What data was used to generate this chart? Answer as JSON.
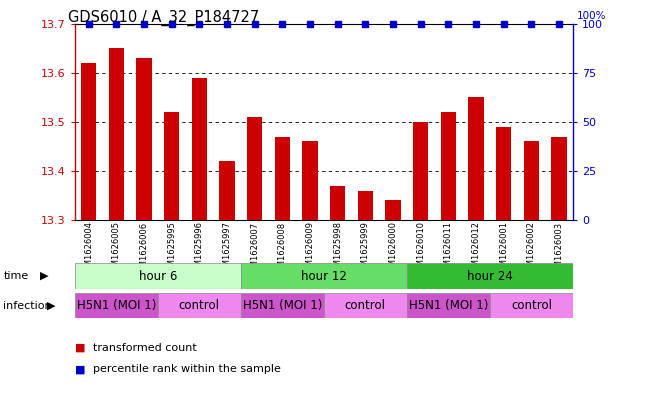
{
  "title": "GDS6010 / A_32_P184727",
  "samples": [
    "GSM1626004",
    "GSM1626005",
    "GSM1626006",
    "GSM1625995",
    "GSM1625996",
    "GSM1625997",
    "GSM1626007",
    "GSM1626008",
    "GSM1626009",
    "GSM1625998",
    "GSM1625999",
    "GSM1626000",
    "GSM1626010",
    "GSM1626011",
    "GSM1626012",
    "GSM1626001",
    "GSM1626002",
    "GSM1626003"
  ],
  "bar_values": [
    13.62,
    13.65,
    13.63,
    13.52,
    13.59,
    13.42,
    13.51,
    13.47,
    13.46,
    13.37,
    13.36,
    13.34,
    13.5,
    13.52,
    13.55,
    13.49,
    13.46,
    13.47
  ],
  "percentile_values": [
    100,
    100,
    100,
    100,
    100,
    100,
    100,
    100,
    100,
    100,
    100,
    100,
    100,
    100,
    100,
    100,
    100,
    100
  ],
  "ylim": [
    13.3,
    13.7
  ],
  "yticks": [
    13.3,
    13.4,
    13.5,
    13.6,
    13.7
  ],
  "right_yticks": [
    0,
    25,
    50,
    75,
    100
  ],
  "bar_color": "#cc0000",
  "dot_color": "#0000cc",
  "time_colors": [
    "#c8ffc8",
    "#66dd66",
    "#33bb33"
  ],
  "inf_colors": {
    "H5N1 (MOI 1)": "#cc55cc",
    "control": "#ee88ee"
  },
  "time_groups": [
    {
      "label": "hour 6",
      "start": 0,
      "end": 6
    },
    {
      "label": "hour 12",
      "start": 6,
      "end": 12
    },
    {
      "label": "hour 24",
      "start": 12,
      "end": 18
    }
  ],
  "infection_groups": [
    {
      "label": "H5N1 (MOI 1)",
      "start": 0,
      "end": 3
    },
    {
      "label": "control",
      "start": 3,
      "end": 6
    },
    {
      "label": "H5N1 (MOI 1)",
      "start": 6,
      "end": 9
    },
    {
      "label": "control",
      "start": 9,
      "end": 12
    },
    {
      "label": "H5N1 (MOI 1)",
      "start": 12,
      "end": 15
    },
    {
      "label": "control",
      "start": 15,
      "end": 18
    }
  ],
  "legend_items": [
    {
      "label": "transformed count",
      "color": "#cc0000"
    },
    {
      "label": "percentile rank within the sample",
      "color": "#0000cc"
    }
  ],
  "bg_color": "#ffffff",
  "label_color_left": "#cc0000",
  "label_color_right": "#0000cc"
}
